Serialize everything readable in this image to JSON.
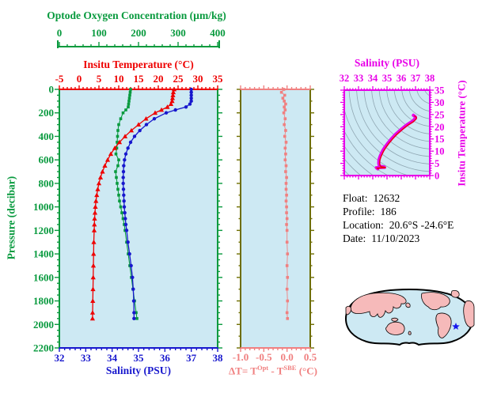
{
  "colors": {
    "oxygen": "#089a3e",
    "temperature": "#ee0000",
    "salinity": "#1717cd",
    "delta": "#f08080",
    "delta_frame": "#6e6e00",
    "ts_frame": "#e800e8",
    "ts_curve": "#e800e8",
    "ts_curve_inner": "#ee0000",
    "plot_bg": "#cde9f3",
    "contour": "#8fa6b2",
    "map_land": "#f6baba",
    "map_ocean": "#cde9f3",
    "map_outline": "#000000",
    "star": "#1717ee",
    "info_text": "#000000"
  },
  "chart_data": [
    {
      "id": "profiles",
      "type": "line",
      "ylabel": "Pressure (decibar)",
      "ylim": [
        0,
        2200
      ],
      "yticks": [
        0,
        200,
        400,
        600,
        800,
        1000,
        1200,
        1400,
        1600,
        1800,
        2000,
        2200
      ],
      "x_axes": [
        {
          "key": "oxygen",
          "label": "Optode Oxygen Concentration (µm/kg)",
          "range": [
            0,
            400
          ],
          "ticks": [
            0,
            100,
            200,
            300,
            400
          ],
          "minor_step": 20
        },
        {
          "key": "temperature",
          "label": "Insitu Temperature (°C)",
          "range": [
            -5,
            35
          ],
          "ticks": [
            -5,
            0,
            5,
            10,
            15,
            20,
            25,
            30,
            35
          ],
          "minor_step": 1
        },
        {
          "key": "salinity",
          "label": "Salinity (PSU)",
          "range": [
            32,
            38
          ],
          "ticks": [
            32,
            33,
            34,
            35,
            36,
            37,
            38
          ],
          "minor_step": 0.2
        }
      ],
      "pressure": [
        0,
        25,
        50,
        75,
        100,
        125,
        150,
        175,
        200,
        250,
        300,
        350,
        400,
        450,
        500,
        550,
        600,
        650,
        700,
        750,
        800,
        850,
        900,
        950,
        1000,
        1050,
        1100,
        1150,
        1200,
        1300,
        1400,
        1500,
        1600,
        1700,
        1800,
        1900,
        1950
      ],
      "series": [
        {
          "name": "Optode Oxygen Concentration",
          "axis": "oxygen",
          "marker": "square",
          "values": [
            180,
            179,
            178,
            177,
            176,
            175,
            174,
            168,
            161,
            155,
            150,
            148,
            147,
            146,
            145,
            143,
            150,
            148,
            142,
            144,
            146,
            148,
            150,
            152,
            155,
            158,
            161,
            164,
            166,
            170,
            174,
            178,
            182,
            186,
            190,
            194,
            196
          ]
        },
        {
          "name": "Insitu Temperature",
          "axis": "temperature",
          "marker": "triangle",
          "values": [
            24.0,
            23.8,
            23.7,
            23.6,
            23.5,
            23.2,
            22.3,
            20.8,
            19.2,
            16.9,
            15.0,
            13.2,
            11.6,
            10.2,
            9.0,
            8.0,
            7.2,
            6.5,
            5.9,
            5.4,
            5.0,
            4.7,
            4.45,
            4.25,
            4.1,
            4.0,
            3.9,
            3.85,
            3.8,
            3.7,
            3.65,
            3.6,
            3.55,
            3.5,
            3.45,
            3.4,
            3.38
          ]
        },
        {
          "name": "Salinity",
          "axis": "salinity",
          "marker": "circle",
          "values": [
            37.0,
            37.0,
            37.0,
            37.0,
            37.0,
            36.95,
            36.8,
            36.4,
            36.05,
            35.6,
            35.3,
            35.05,
            34.85,
            34.7,
            34.6,
            34.52,
            34.47,
            34.44,
            34.43,
            34.42,
            34.42,
            34.43,
            34.44,
            34.45,
            34.46,
            34.48,
            34.5,
            34.52,
            34.55,
            34.6,
            34.66,
            34.72,
            34.77,
            34.8,
            34.82,
            34.83,
            34.83
          ]
        }
      ]
    },
    {
      "id": "delta",
      "type": "line",
      "xlabel_parts": {
        "p1": "ΔT= T",
        "sup1": "Opt",
        "p2": " - T",
        "sup2": "SBE",
        "p3": " (°C)"
      },
      "xlim": [
        -1.0,
        0.5
      ],
      "xtick_labels": [
        "-1.0",
        "-0.5",
        "0.0",
        "0.5"
      ],
      "xticks": [
        -1.0,
        -0.5,
        0.0,
        0.5
      ],
      "minor_step": 0.1,
      "series": [
        {
          "name": "ΔT",
          "marker": "square",
          "values": [
            -0.07,
            -0.12,
            -0.05,
            -0.09,
            -0.06,
            -0.03,
            -0.06,
            -0.04,
            -0.07,
            -0.04,
            -0.06,
            -0.03,
            -0.05,
            -0.02,
            -0.04,
            -0.03,
            -0.04,
            -0.02,
            -0.03,
            -0.01,
            -0.02,
            -0.02,
            -0.01,
            -0.02,
            -0.01,
            -0.01,
            0.0,
            -0.01,
            0.0,
            0.0,
            0.01,
            0.0,
            0.01,
            0.0,
            0.01,
            0.0,
            0.01
          ]
        }
      ]
    },
    {
      "id": "ts",
      "type": "scatter",
      "xlabel": "Salinity (PSU)",
      "xlim": [
        32,
        38
      ],
      "xticks": [
        32,
        33,
        34,
        35,
        36,
        37,
        38
      ],
      "ylabel": "Insitu Temperature (°C)",
      "ylim": [
        0,
        35
      ],
      "yticks": [
        0,
        5,
        10,
        15,
        20,
        25,
        30,
        35
      ],
      "points": [
        [
          36.85,
          24.7
        ],
        [
          37.0,
          24.0
        ],
        [
          37.0,
          23.8
        ],
        [
          37.0,
          23.7
        ],
        [
          37.0,
          23.6
        ],
        [
          37.0,
          23.5
        ],
        [
          36.95,
          23.2
        ],
        [
          36.8,
          22.3
        ],
        [
          36.4,
          20.8
        ],
        [
          36.05,
          19.2
        ],
        [
          35.6,
          16.9
        ],
        [
          35.3,
          15.0
        ],
        [
          35.05,
          13.2
        ],
        [
          34.85,
          11.6
        ],
        [
          34.7,
          10.2
        ],
        [
          34.6,
          9.0
        ],
        [
          34.52,
          8.0
        ],
        [
          34.47,
          7.2
        ],
        [
          34.44,
          6.5
        ],
        [
          34.43,
          5.9
        ],
        [
          34.42,
          5.4
        ],
        [
          34.42,
          5.0
        ],
        [
          34.43,
          4.7
        ],
        [
          34.44,
          4.45
        ],
        [
          34.45,
          4.25
        ],
        [
          34.46,
          4.1
        ],
        [
          34.48,
          4.0
        ],
        [
          34.5,
          3.9
        ],
        [
          34.52,
          3.85
        ],
        [
          34.55,
          3.8
        ],
        [
          34.6,
          3.7
        ],
        [
          34.66,
          3.65
        ],
        [
          34.72,
          3.6
        ],
        [
          34.77,
          3.55
        ],
        [
          34.8,
          3.5
        ],
        [
          34.82,
          3.45
        ],
        [
          34.83,
          3.4
        ],
        [
          34.83,
          3.38
        ],
        [
          34.55,
          3.3
        ],
        [
          34.25,
          3.2
        ],
        [
          34.35,
          2.75
        ]
      ]
    }
  ],
  "float_info": {
    "rows": [
      {
        "label": "Float:",
        "value": "12632"
      },
      {
        "label": "Profile:",
        "value": "186"
      },
      {
        "label": "Location:",
        "value": "20.6°S  -24.6°E"
      },
      {
        "label": "Date:",
        "value": "11/10/2023"
      }
    ]
  },
  "map": {
    "description": "world map with float location star"
  }
}
